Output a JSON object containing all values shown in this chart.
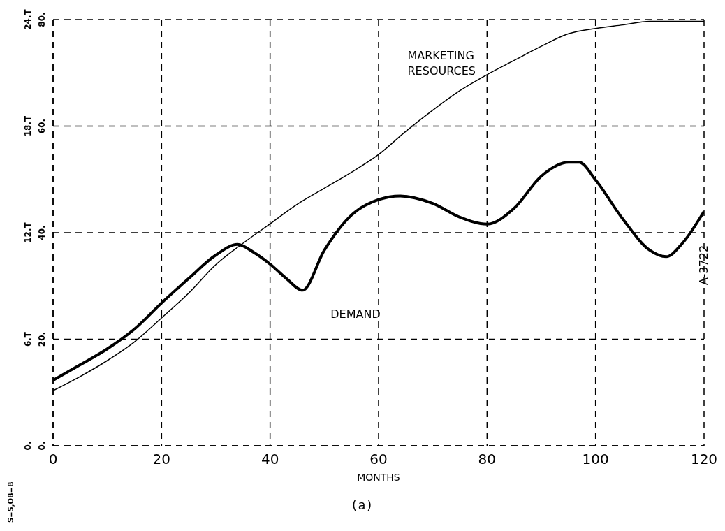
{
  "chart_data": {
    "type": "line",
    "x": [
      0,
      5,
      10,
      15,
      20,
      25,
      30,
      34,
      37,
      40,
      43,
      46,
      50,
      55,
      60,
      64,
      70,
      75,
      80,
      85,
      90,
      95,
      97,
      100,
      105,
      110,
      113,
      116,
      120
    ],
    "series": [
      {
        "name": "DEMAND",
        "color": "#000000",
        "values": [
          12.3,
          15.2,
          18.2,
          21.9,
          26.8,
          31.4,
          35.8,
          37.8,
          36.3,
          34.1,
          31.4,
          29.2,
          36.7,
          43.3,
          46.2,
          46.9,
          45.5,
          42.9,
          41.6,
          44.6,
          50.6,
          53.2,
          53.2,
          49.9,
          42.6,
          36.7,
          35.5,
          38.0,
          44.0
        ]
      },
      {
        "name": "MARKETING RESOURCES",
        "color": "#000000",
        "axis": "y2",
        "x": [
          0,
          5,
          10,
          15,
          20,
          25,
          30,
          35,
          40,
          45,
          50,
          55,
          60,
          65,
          70,
          75,
          80,
          85,
          90,
          95,
          100,
          105,
          110,
          120
        ],
        "values": [
          3.1,
          3.9,
          4.8,
          5.85,
          7.2,
          8.6,
          10.2,
          11.4,
          12.5,
          13.6,
          14.5,
          15.4,
          16.4,
          17.7,
          18.9,
          20.0,
          20.9,
          21.7,
          22.5,
          23.2,
          23.5,
          23.7,
          23.9,
          23.9
        ]
      }
    ],
    "xlabel": "MONTHS",
    "xlim": [
      0,
      120
    ],
    "xticks": [
      0,
      20,
      40,
      60,
      80,
      100,
      120
    ],
    "ylim": [
      0,
      80
    ],
    "yticks": [
      {
        "value": 0,
        "label": "0."
      },
      {
        "value": 20,
        "label": "20."
      },
      {
        "value": 40,
        "label": "40."
      },
      {
        "value": 60,
        "label": "60."
      },
      {
        "value": 80,
        "label": "80."
      }
    ],
    "y2lim": [
      0,
      24
    ],
    "y2ticks": [
      {
        "value": 0,
        "label": "0."
      },
      {
        "value": 6,
        "label": "6.T"
      },
      {
        "value": 12,
        "label": "12.T"
      },
      {
        "value": 18,
        "label": "18.T"
      },
      {
        "value": 24,
        "label": "24.T"
      }
    ],
    "grid": true,
    "line_style": "solid",
    "marker": "none",
    "annotations": [
      "A-3722",
      "(a)",
      "S=S,OB=B"
    ]
  }
}
